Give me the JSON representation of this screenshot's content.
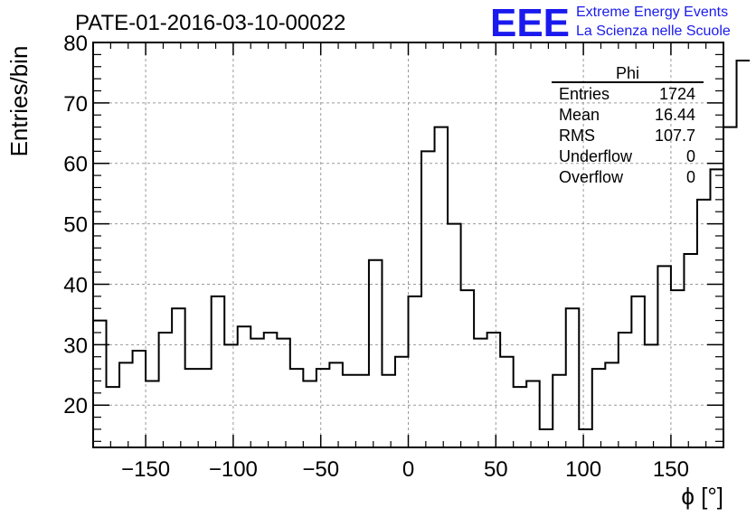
{
  "header": {
    "logo_text": "EEE",
    "line1": "Extreme Energy Events",
    "line2": "La Scienza nelle Scuole",
    "brand_color": "#1a1aee"
  },
  "chart_data": {
    "type": "histogram",
    "title": "PATE-01-2016-03-10-00022",
    "xlabel": "ϕ [°]",
    "ylabel": "Entries/bin",
    "xlim": [
      -180,
      180
    ],
    "ylim": [
      13,
      80
    ],
    "grid": true,
    "bin_width": 7.5,
    "xticks": [
      -150,
      -100,
      -50,
      0,
      50,
      100,
      150
    ],
    "xtick_labels": [
      "−150",
      "−100",
      "−50",
      "0",
      "50",
      "100",
      "150"
    ],
    "yticks": [
      20,
      30,
      40,
      50,
      60,
      70,
      80
    ],
    "ytick_labels": [
      "20",
      "30",
      "40",
      "50",
      "60",
      "70",
      "80"
    ],
    "values": [
      34,
      23,
      27,
      29,
      24,
      32,
      36,
      26,
      26,
      38,
      30,
      33,
      31,
      32,
      31,
      26,
      24,
      26,
      27,
      25,
      25,
      44,
      25,
      28,
      38,
      62,
      66,
      50,
      39,
      31,
      32,
      28,
      23,
      24,
      16,
      25,
      36,
      16,
      26,
      27,
      32,
      38,
      30,
      43,
      39,
      45,
      54,
      59,
      66,
      77
    ],
    "stats_box": {
      "title": "Phi",
      "rows": [
        {
          "label": "Entries",
          "value": "1724"
        },
        {
          "label": "Mean",
          "value": "16.44"
        },
        {
          "label": "RMS",
          "value": "107.7"
        },
        {
          "label": "Underflow",
          "value": "0"
        },
        {
          "label": "Overflow",
          "value": "0"
        }
      ]
    }
  }
}
